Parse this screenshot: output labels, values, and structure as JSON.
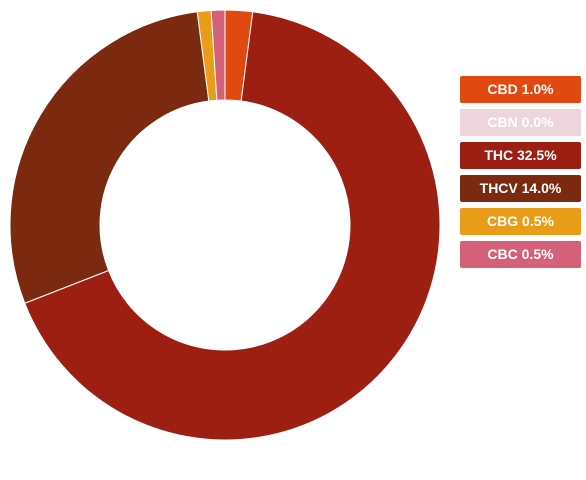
{
  "chart_data": {
    "type": "pie",
    "style": "donut",
    "legend_position": "right",
    "series": [
      {
        "name": "CBD",
        "value": 1.0,
        "label": "CBD 1.0%",
        "color": "#e04a10"
      },
      {
        "name": "CBN",
        "value": 0.0,
        "label": "CBN 0.0%",
        "color": "#edd5dd"
      },
      {
        "name": "THC",
        "value": 32.5,
        "label": "THC 32.5%",
        "color": "#9c1f12"
      },
      {
        "name": "THCV",
        "value": 14.0,
        "label": "THCV 14.0%",
        "color": "#7b2a10"
      },
      {
        "name": "CBG",
        "value": 0.5,
        "label": "CBG 0.5%",
        "color": "#e89c17"
      },
      {
        "name": "CBC",
        "value": 0.5,
        "label": "CBC 0.5%",
        "color": "#d4607a"
      }
    ]
  }
}
